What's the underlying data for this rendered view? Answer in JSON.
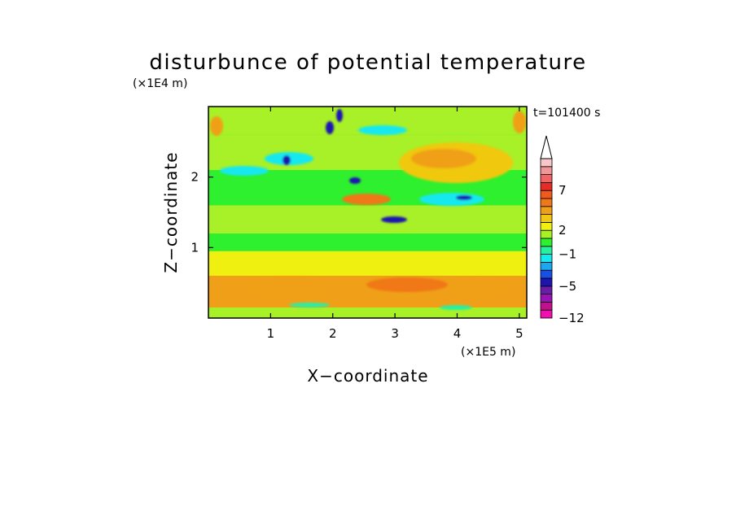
{
  "chart_data": {
    "type": "heatmap",
    "title": "disturbunce of potential temperature",
    "time_label": "t=101400 s",
    "xlabel": "X−coordinate",
    "ylabel": "Z−coordinate",
    "x_unit": "(×1E5 m)",
    "y_unit": "(×1E4 m)",
    "xlim": [
      0,
      5.12
    ],
    "ylim": [
      0,
      3.0
    ],
    "x_ticks": [
      1,
      2,
      3,
      4,
      5
    ],
    "x_tick_labels": [
      "1",
      "2",
      "3",
      "4",
      "5"
    ],
    "y_ticks": [
      1,
      2
    ],
    "y_tick_labels": [
      "1",
      "2"
    ],
    "colorbar": {
      "tick_labels": [
        "7",
        "2",
        "−1",
        "−5",
        "−12"
      ],
      "levels": [
        -12,
        -10,
        -8,
        -7,
        -5,
        -4,
        -3,
        -2,
        -1,
        0,
        1,
        2,
        3,
        4,
        5,
        6,
        7,
        8,
        9,
        10
      ],
      "colors": [
        "#f010b0",
        "#c0108e",
        "#9a14b4",
        "#6a1ea8",
        "#1e14b0",
        "#1850e6",
        "#1aa8f0",
        "#16e8f0",
        "#28f0a0",
        "#2ef02e",
        "#a8f028",
        "#f0f010",
        "#f0c810",
        "#f0a018",
        "#f07818",
        "#f05a1c",
        "#e82a28",
        "#f06464",
        "#f09696",
        "#f8c8c8"
      ]
    },
    "field_bands": [
      {
        "z_range": [
          0.0,
          0.15
        ],
        "value": 1.5
      },
      {
        "z_range": [
          0.15,
          0.6
        ],
        "value": 4.2
      },
      {
        "z_range": [
          0.6,
          0.95
        ],
        "value": 2.4
      },
      {
        "z_range": [
          0.95,
          1.2
        ],
        "value": 0.3
      },
      {
        "z_range": [
          1.2,
          1.6
        ],
        "value": 1.2
      },
      {
        "z_range": [
          1.6,
          2.1
        ],
        "value": 0.6
      },
      {
        "z_range": [
          2.1,
          2.6
        ],
        "value": 1.1
      },
      {
        "z_range": [
          2.6,
          3.0
        ],
        "value": 1.4
      }
    ],
    "grid": false
  }
}
